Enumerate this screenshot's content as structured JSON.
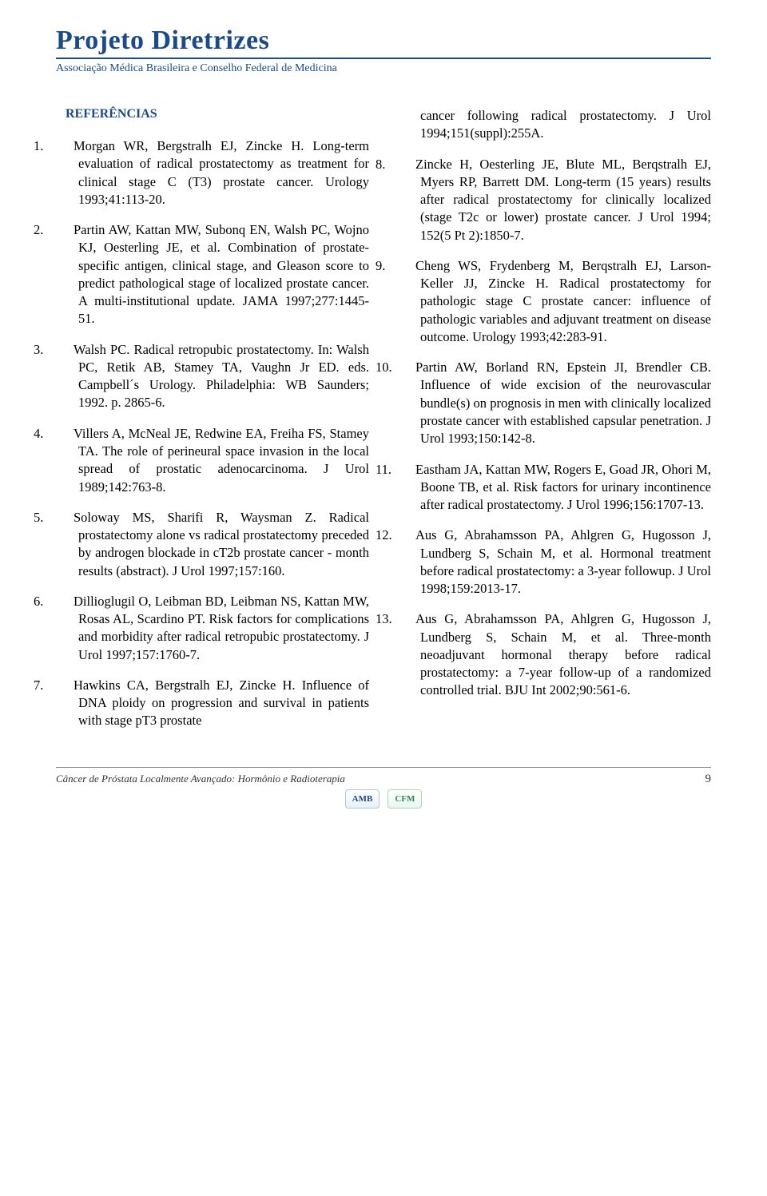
{
  "header": {
    "title": "Projeto Diretrizes",
    "subtitle": "Associação Médica Brasileira e Conselho Federal de Medicina"
  },
  "section_title": "REFERÊNCIAS",
  "colors": {
    "brand": "#1a4a8a",
    "text": "#000000",
    "background": "#ffffff",
    "rule": "#888888"
  },
  "typography": {
    "body_font": "Times New Roman, serif",
    "body_size_pt": 12,
    "line_height": 1.35,
    "title_size_pt": 26,
    "subtitle_size_pt": 10,
    "section_title_size_pt": 12
  },
  "col2_lead": "cancer following radical prostatectomy. J Urol 1994;151(suppl):255A.",
  "references_left": [
    {
      "n": "1.",
      "text": "Morgan WR, Bergstralh EJ, Zincke H. Long-term evaluation of radical prostatectomy as treatment for clinical stage C (T3) prostate cancer. Urology 1993;41:113-20."
    },
    {
      "n": "2.",
      "text": "Partin AW, Kattan MW, Subonq EN, Walsh PC, Wojno KJ, Oesterling JE, et al. Combination of prostate-specific antigen, clinical stage, and Gleason score to predict pathological stage of localized prostate cancer. A multi-institutional update. JAMA 1997;277:1445-51."
    },
    {
      "n": "3.",
      "text": "Walsh PC. Radical retropubic prostatectomy. In: Walsh PC, Retik AB, Stamey TA, Vaughn Jr ED. eds. Campbell´s Urology. Philadelphia: WB Saunders; 1992. p. 2865-6."
    },
    {
      "n": "4.",
      "text": "Villers A, McNeal JE, Redwine EA, Freiha FS, Stamey TA. The role of perineural space invasion in the local spread of prostatic adenocarcinoma. J Urol 1989;142:763-8."
    },
    {
      "n": "5.",
      "text": "Soloway MS, Sharifi R, Waysman Z. Radical prostatectomy alone vs radical prostatectomy preceded by androgen blockade in cT2b prostate cancer - month results (abstract). J Urol 1997;157:160."
    },
    {
      "n": "6.",
      "text": "Dillioglugil O, Leibman BD, Leibman NS, Kattan MW, Rosas AL, Scardino PT. Risk factors for complications and morbidity after radical retropubic prostatectomy. J Urol 1997;157:1760-7."
    },
    {
      "n": "7.",
      "text": "Hawkins CA, Bergstralh EJ, Zincke H. Influence of DNA ploidy on progression and survival in patients with stage pT3 prostate"
    }
  ],
  "references_right": [
    {
      "n": "8.",
      "text": "Zincke H, Oesterling JE, Blute ML, Berqstralh EJ, Myers RP, Barrett DM. Long-term (15 years) results after radical prostatectomy for clinically localized (stage T2c or lower) prostate cancer. J Urol 1994; 152(5 Pt 2):1850-7."
    },
    {
      "n": "9.",
      "text": "Cheng WS, Frydenberg M, Berqstralh EJ, Larson-Keller JJ, Zincke H. Radical prostatectomy for pathologic stage C prostate cancer: influence of pathologic variables and adjuvant treatment on disease outcome. Urology 1993;42:283-91."
    },
    {
      "n": "10.",
      "text": "Partin AW, Borland RN, Epstein JI, Brendler CB. Influence of wide excision of the neurovascular bundle(s) on prognosis in men with clinically localized prostate cancer with established capsular penetration. J Urol 1993;150:142-8."
    },
    {
      "n": "11.",
      "text": "Eastham JA, Kattan MW, Rogers E, Goad JR, Ohori M, Boone TB, et al. Risk factors for urinary incontinence after radical prostatectomy. J Urol 1996;156:1707-13."
    },
    {
      "n": "12.",
      "text": "Aus G, Abrahamsson PA, Ahlgren G, Hugosson J, Lundberg S, Schain M, et al. Hormonal treatment before radical prostatectomy: a 3-year followup. J Urol 1998;159:2013-17."
    },
    {
      "n": "13.",
      "text": "Aus G, Abrahamsson PA, Ahlgren G, Hugosson J, Lundberg S, Schain M, et al. Three-month neoadjuvant hormonal therapy before radical prostatectomy: a 7-year follow-up of a randomized controlled trial. BJU Int 2002;90:561-6."
    }
  ],
  "footer": {
    "running_title": "Câncer de Próstata Localmente Avançado: Hormônio e Radioterapia",
    "page_number": "9",
    "logo_left": "AMB",
    "logo_right": "CFM"
  }
}
